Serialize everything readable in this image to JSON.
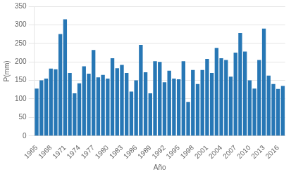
{
  "chart_data": {
    "type": "bar",
    "categories": [
      "1965",
      null,
      null,
      "1968",
      null,
      null,
      "1971",
      null,
      null,
      "1974",
      null,
      null,
      "1977",
      null,
      null,
      "1980",
      null,
      null,
      "1983",
      null,
      null,
      "1986",
      null,
      null,
      "1989",
      null,
      null,
      "1992",
      null,
      null,
      "1995",
      null,
      null,
      "1998",
      null,
      null,
      "2001",
      null,
      null,
      "2004",
      null,
      null,
      "2007",
      null,
      null,
      "2010",
      null,
      null,
      "2013",
      null,
      null,
      "2016",
      null
    ],
    "values": [
      128,
      150,
      155,
      182,
      180,
      275,
      315,
      170,
      115,
      142,
      188,
      168,
      232,
      158,
      165,
      155,
      210,
      183,
      192,
      170,
      120,
      150,
      246,
      172,
      115,
      202,
      200,
      145,
      176,
      155,
      153,
      202,
      92,
      178,
      140,
      178,
      208,
      170,
      238,
      210,
      205,
      160,
      225,
      278,
      228,
      150,
      128,
      205,
      290,
      163,
      140,
      127,
      135
    ],
    "color": "#2777B5",
    "xlabel": "Año",
    "ylabel": "P(mm)",
    "ylim": [
      0,
      350
    ],
    "yticks": [
      0,
      50,
      100,
      150,
      200,
      250,
      300,
      350
    ],
    "grid": true
  }
}
